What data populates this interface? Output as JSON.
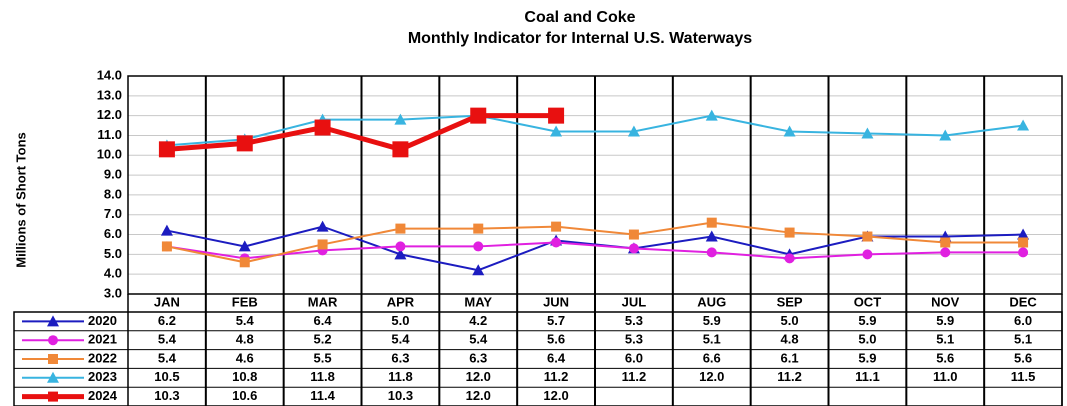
{
  "chart_data": {
    "type": "line",
    "title": "Coal and Coke",
    "subtitle": "Monthly Indicator for Internal U.S. Waterways",
    "y_label": "Millions of Short Tons",
    "categories": [
      "JAN",
      "FEB",
      "MAR",
      "APR",
      "MAY",
      "JUN",
      "JUL",
      "AUG",
      "SEP",
      "OCT",
      "NOV",
      "DEC"
    ],
    "ylim": [
      3,
      14
    ],
    "yticks": [
      {
        "value": 3,
        "label": "3.0"
      },
      {
        "value": 4,
        "label": "4.0"
      },
      {
        "value": 5,
        "label": "5.0"
      },
      {
        "value": 6,
        "label": "6.0"
      },
      {
        "value": 7,
        "label": "7.0"
      },
      {
        "value": 8,
        "label": "8.0"
      },
      {
        "value": 9,
        "label": "9.0"
      },
      {
        "value": 10,
        "label": "10.0"
      },
      {
        "value": 11,
        "label": "11.0"
      },
      {
        "value": 12,
        "label": "12.0"
      },
      {
        "value": 13,
        "label": "13.0"
      },
      {
        "value": 14,
        "label": "14.0"
      }
    ],
    "grid": true,
    "series": [
      {
        "name": "2020",
        "color": "#1c1cc0",
        "marker": "triangle",
        "values": [
          6.2,
          5.4,
          6.4,
          5.0,
          4.2,
          5.7,
          5.3,
          5.9,
          5.0,
          5.9,
          5.9,
          6.0
        ],
        "value_labels": [
          "6.2",
          "5.4",
          "6.4",
          "5.0",
          "4.2",
          "5.7",
          "5.3",
          "5.9",
          "5.0",
          "5.9",
          "5.9",
          "6.0"
        ]
      },
      {
        "name": "2021",
        "color": "#e020e0",
        "marker": "circle",
        "values": [
          5.4,
          4.8,
          5.2,
          5.4,
          5.4,
          5.6,
          5.3,
          5.1,
          4.8,
          5.0,
          5.1,
          5.1
        ],
        "value_labels": [
          "5.4",
          "4.8",
          "5.2",
          "5.4",
          "5.4",
          "5.6",
          "5.3",
          "5.1",
          "4.8",
          "5.0",
          "5.1",
          "5.1"
        ]
      },
      {
        "name": "2022",
        "color": "#f08838",
        "marker": "square",
        "values": [
          5.4,
          4.6,
          5.5,
          6.3,
          6.3,
          6.4,
          6.0,
          6.6,
          6.1,
          5.9,
          5.6,
          5.6
        ],
        "value_labels": [
          "5.4",
          "4.6",
          "5.5",
          "6.3",
          "6.3",
          "6.4",
          "6.0",
          "6.6",
          "6.1",
          "5.9",
          "5.6",
          "5.6"
        ]
      },
      {
        "name": "2023",
        "color": "#38b4e0",
        "marker": "triangle",
        "values": [
          10.5,
          10.8,
          11.8,
          11.8,
          12.0,
          11.2,
          11.2,
          12.0,
          11.2,
          11.1,
          11.0,
          11.5
        ],
        "value_labels": [
          "10.5",
          "10.8",
          "11.8",
          "11.8",
          "12.0",
          "11.2",
          "11.2",
          "12.0",
          "11.2",
          "11.1",
          "11.0",
          "11.5"
        ]
      },
      {
        "name": "2024",
        "color": "#e81010",
        "marker": "bigsquare",
        "values": [
          10.3,
          10.6,
          11.4,
          10.3,
          12.0,
          12.0,
          null,
          null,
          null,
          null,
          null,
          null
        ],
        "value_labels": [
          "10.3",
          "10.6",
          "11.4",
          "10.3",
          "12.0",
          "12.0",
          null,
          null,
          null,
          null,
          null,
          null
        ]
      }
    ]
  }
}
